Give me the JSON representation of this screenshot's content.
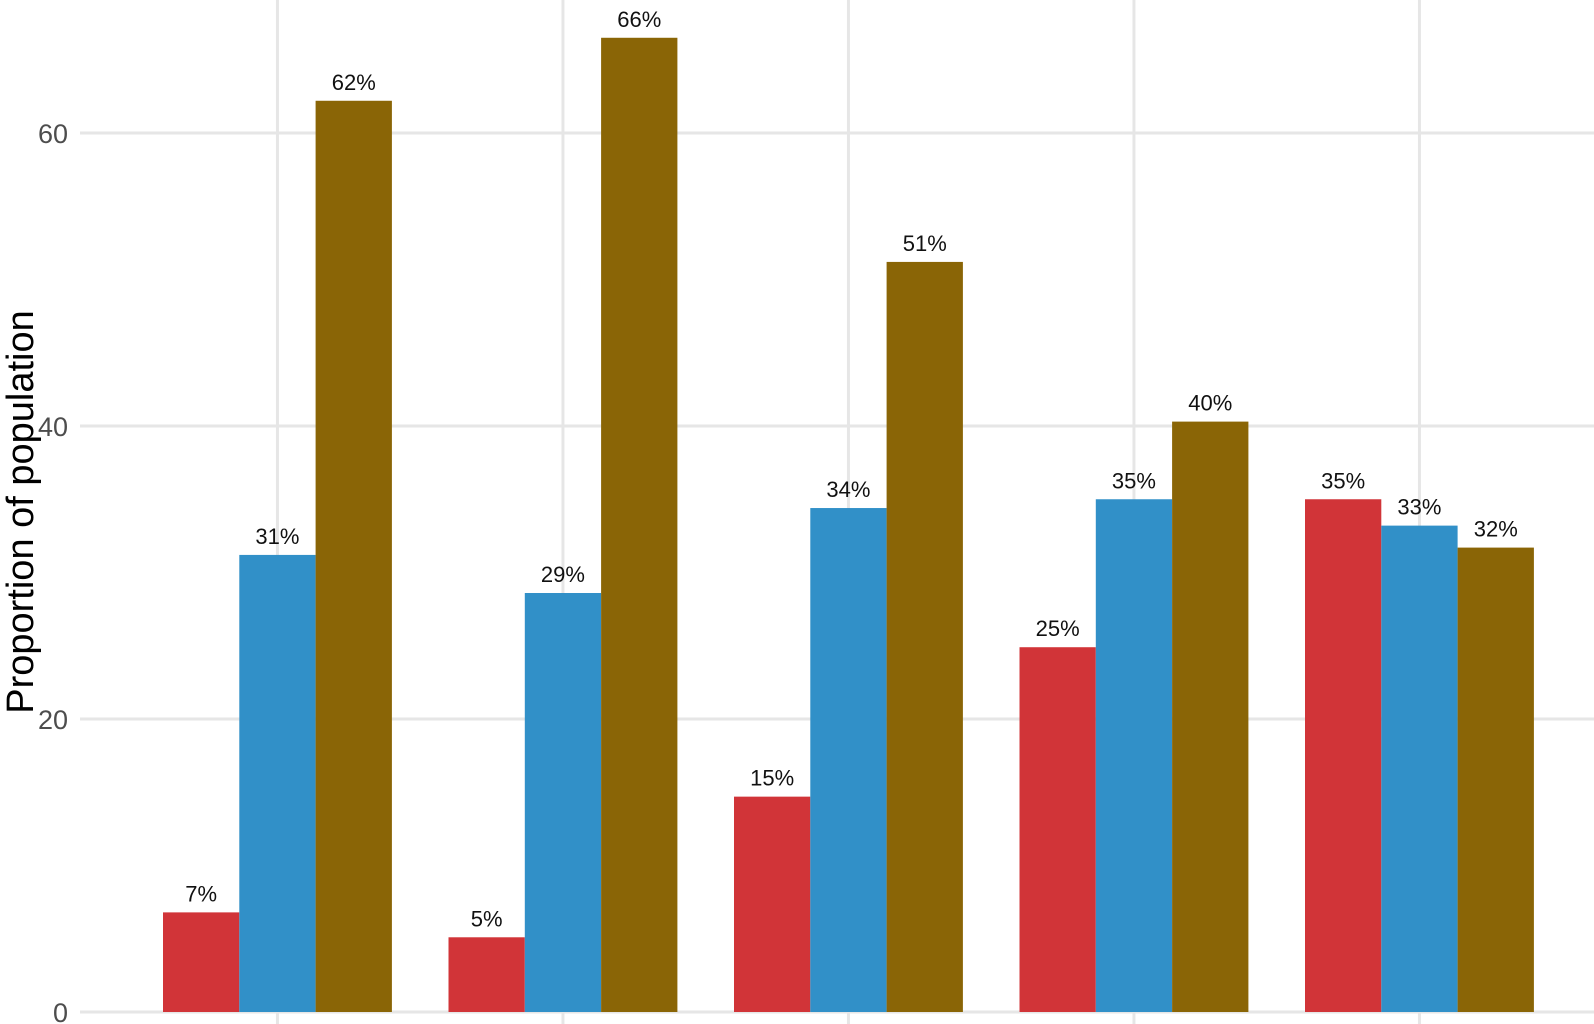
{
  "chart_data": {
    "type": "bar",
    "title": "",
    "xlabel": "",
    "ylabel": "Proportion of population",
    "ylim": [
      0,
      67
    ],
    "yticks": [
      0,
      20,
      40,
      60
    ],
    "grid": true,
    "categories": [
      "",
      "",
      "",
      "",
      ""
    ],
    "series": [
      {
        "color": "#d13438",
        "values": [
          6.8,
          5.1,
          14.7,
          24.9,
          35.0
        ],
        "labels": [
          "7%",
          "5%",
          "15%",
          "25%",
          "35%"
        ]
      },
      {
        "color": "#3190c8",
        "values": [
          31.2,
          28.6,
          34.4,
          35.0,
          33.2
        ],
        "labels": [
          "31%",
          "29%",
          "34%",
          "35%",
          "33%"
        ]
      },
      {
        "color": "#8a6506",
        "values": [
          62.2,
          66.5,
          51.2,
          40.3,
          31.7
        ],
        "labels": [
          "62%",
          "66%",
          "51%",
          "40%",
          "32%"
        ]
      }
    ]
  }
}
